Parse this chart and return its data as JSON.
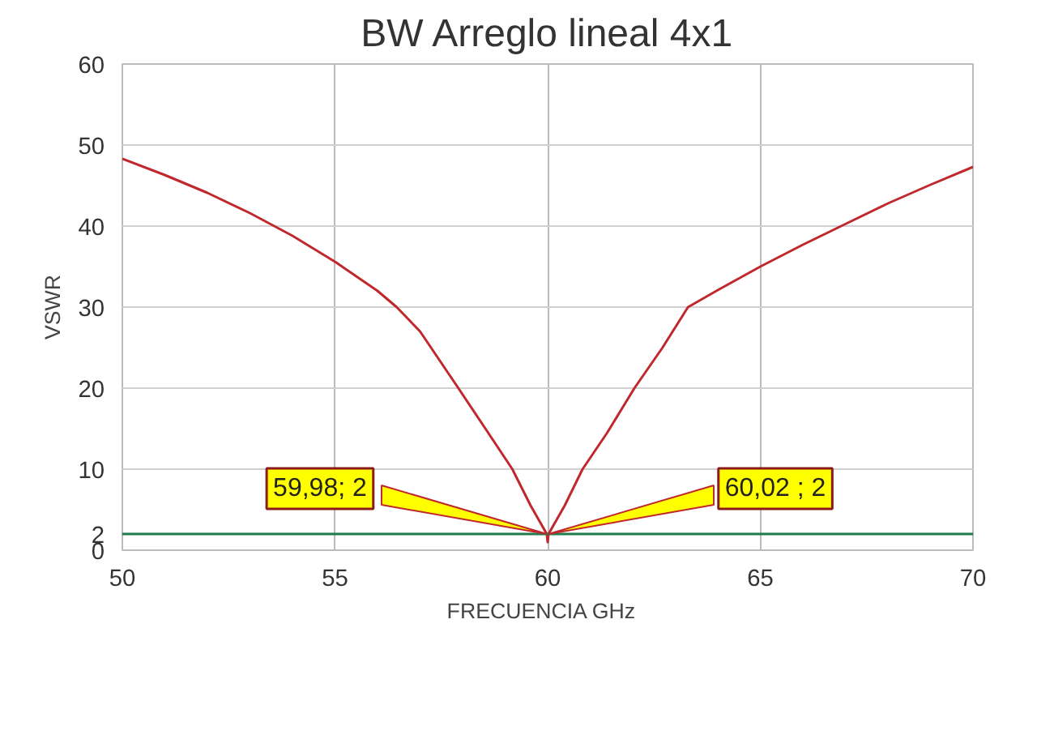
{
  "chart_data": {
    "type": "line",
    "title": "BW Arreglo lineal 4x1",
    "xlabel": "FRECUENCIA   GHz",
    "ylabel": "VSWR",
    "series": [
      {
        "color": "#c0282d",
        "x": [
          50,
          51,
          52,
          53,
          54,
          55,
          56,
          56.45,
          57,
          57.9,
          58.6,
          59.17,
          59.6,
          59.98,
          60,
          60.02,
          60.4,
          60.82,
          61.4,
          62.04,
          62.7,
          63.3,
          64,
          65,
          66,
          66.9,
          68,
          69,
          70
        ],
        "values": [
          48.3,
          46.3,
          44.1,
          41.6,
          38.8,
          35.6,
          32,
          30,
          27,
          20,
          14.5,
          10,
          5.5,
          2,
          1,
          2,
          5.5,
          10,
          14.5,
          20,
          25,
          30,
          32.1,
          35,
          37.7,
          40,
          42.8,
          45.1,
          47.3
        ]
      },
      {
        "color": "#1f7a4c",
        "x": [
          50,
          70
        ],
        "values": [
          2,
          2
        ]
      }
    ],
    "xlim": [
      50,
      70
    ],
    "xticks": [
      50,
      55,
      60,
      65,
      70
    ],
    "ylim": [
      0,
      60
    ],
    "yticks": [
      0,
      2,
      10,
      20,
      30,
      40,
      50,
      60
    ],
    "grid": true,
    "marker": "none",
    "line_style": "solid",
    "annotations": [
      {
        "text": "59,98; 2",
        "x": 59.98,
        "y": 2
      },
      {
        "text": "60,02 ; 2",
        "x": 60.02,
        "y": 2
      }
    ]
  }
}
